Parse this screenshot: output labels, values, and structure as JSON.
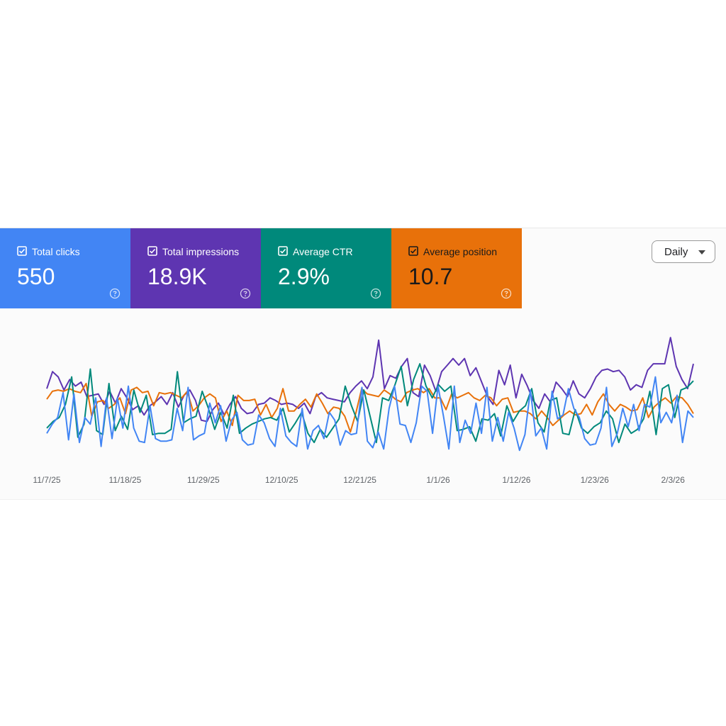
{
  "cards": [
    {
      "id": "clicks",
      "label": "Total clicks",
      "value": "550",
      "color": "#4285f4",
      "text_color": "#ffffff"
    },
    {
      "id": "impressions",
      "label": "Total impressions",
      "value": "18.9K",
      "color": "#5e35b1",
      "text_color": "#ffffff"
    },
    {
      "id": "ctr",
      "label": "Average CTR",
      "value": "2.9%",
      "color": "#00897b",
      "text_color": "#ffffff"
    },
    {
      "id": "position",
      "label": "Average position",
      "value": "10.7",
      "color": "#e8710a",
      "text_color": "#1a1a1a"
    }
  ],
  "controls": {
    "granularity": "Daily"
  },
  "icons": {
    "card_check": "checkbox-checked-icon",
    "card_help": "help-circle-icon",
    "dropdown": "caret-down-icon"
  },
  "chart_data": {
    "type": "line",
    "title": "",
    "xlabel": "",
    "ylabel": "",
    "grid": false,
    "legend": "none",
    "x_ticks": [
      "11/7/25",
      "11/18/25",
      "11/29/25",
      "12/10/25",
      "12/21/25",
      "1/1/26",
      "1/12/26",
      "1/23/26",
      "2/3/26"
    ],
    "x_start": "2025-11-07",
    "x_end": "2026-02-07",
    "ylim": [
      0,
      100
    ],
    "series": [
      {
        "key": "impressions",
        "color": "#5e35b1",
        "values": [
          55,
          68,
          64,
          54,
          62,
          57,
          60,
          49,
          50,
          51,
          43,
          53,
          44,
          55,
          48,
          39,
          42,
          35,
          42,
          45,
          49,
          43,
          52,
          41,
          50,
          54,
          46,
          31,
          30,
          39,
          44,
          35,
          43,
          49,
          40,
          36,
          37,
          43,
          44,
          48,
          46,
          43,
          44,
          43,
          40,
          44,
          36,
          49,
          52,
          48,
          47,
          46,
          45,
          52,
          57,
          61,
          55,
          64,
          92,
          55,
          65,
          63,
          72,
          78,
          52,
          49,
          73,
          65,
          53,
          68,
          73,
          78,
          73,
          78,
          65,
          71,
          60,
          49,
          43,
          69,
          58,
          73,
          48,
          66,
          57,
          46,
          40,
          51,
          45,
          60,
          55,
          49,
          61,
          51,
          48,
          55,
          64,
          69,
          70,
          68,
          69,
          64,
          54,
          58,
          56,
          69,
          74,
          74,
          74,
          94,
          72,
          62,
          55,
          74
        ]
      },
      {
        "key": "position",
        "color": "#e8710a",
        "values": [
          47,
          53,
          54,
          53,
          55,
          53,
          52,
          59,
          34,
          45,
          46,
          40,
          43,
          48,
          36,
          54,
          56,
          52,
          53,
          42,
          52,
          51,
          52,
          50,
          48,
          53,
          38,
          42,
          48,
          51,
          48,
          30,
          38,
          27,
          50,
          46,
          46,
          47,
          35,
          43,
          33,
          40,
          55,
          38,
          38,
          43,
          47,
          41,
          51,
          44,
          36,
          41,
          40,
          34,
          22,
          37,
          55,
          51,
          50,
          49,
          54,
          51,
          47,
          45,
          52,
          54,
          55,
          52,
          55,
          48,
          48,
          39,
          51,
          48,
          50,
          52,
          48,
          46,
          50,
          48,
          42,
          47,
          48,
          37,
          38,
          38,
          36,
          32,
          38,
          33,
          27,
          31,
          35,
          38,
          35,
          36,
          43,
          35,
          45,
          51,
          43,
          38,
          43,
          41,
          38,
          39,
          48,
          33,
          41,
          45,
          48,
          44,
          49,
          48,
          43,
          36
        ]
      },
      {
        "key": "ctr",
        "color": "#00897b",
        "values": [
          25,
          30,
          33,
          43,
          64,
          18,
          28,
          70,
          23,
          20,
          59,
          23,
          34,
          24,
          54,
          37,
          50,
          20,
          21,
          21,
          24,
          68,
          29,
          32,
          34,
          53,
          40,
          24,
          37,
          25,
          50,
          21,
          25,
          28,
          30,
          32,
          33,
          31,
          40,
          22,
          29,
          37,
          21,
          14,
          24,
          18,
          25,
          32,
          57,
          42,
          30,
          54,
          34,
          14,
          48,
          46,
          58,
          72,
          42,
          62,
          74,
          57,
          48,
          58,
          53,
          57,
          23,
          24,
          26,
          15,
          32,
          31,
          36,
          19,
          42,
          30,
          38,
          42,
          55,
          29,
          22,
          46,
          48,
          21,
          20,
          39,
          25,
          21,
          26,
          29,
          38,
          32,
          14,
          28,
          21,
          24,
          32,
          53,
          20,
          55,
          58,
          33,
          54,
          56,
          61
        ]
      },
      {
        "key": "clicks",
        "color": "#4285f4",
        "values": [
          21,
          28,
          33,
          52,
          16,
          51,
          14,
          33,
          28,
          48,
          11,
          48,
          17,
          48,
          25,
          57,
          25,
          15,
          14,
          42,
          17,
          15,
          15,
          16,
          40,
          23,
          56,
          16,
          19,
          21,
          44,
          29,
          42,
          15,
          31,
          37,
          16,
          12,
          13,
          35,
          29,
          17,
          11,
          40,
          19,
          14,
          11,
          40,
          9,
          23,
          27,
          17,
          37,
          31,
          12,
          23,
          20,
          21,
          56,
          15,
          10,
          22,
          9,
          40,
          57,
          28,
          27,
          14,
          29,
          57,
          53,
          21,
          57,
          34,
          9,
          57,
          14,
          31,
          21,
          44,
          21,
          56,
          15,
          33,
          15,
          37,
          25,
          8,
          20,
          54,
          19,
          25,
          9,
          53,
          32,
          35,
          55,
          40,
          33,
          17,
          12,
          13,
          25,
          56,
          11,
          21,
          40,
          26,
          43,
          23,
          43,
          41,
          64,
          29,
          37,
          29,
          50,
          14,
          38,
          33
        ]
      }
    ]
  }
}
